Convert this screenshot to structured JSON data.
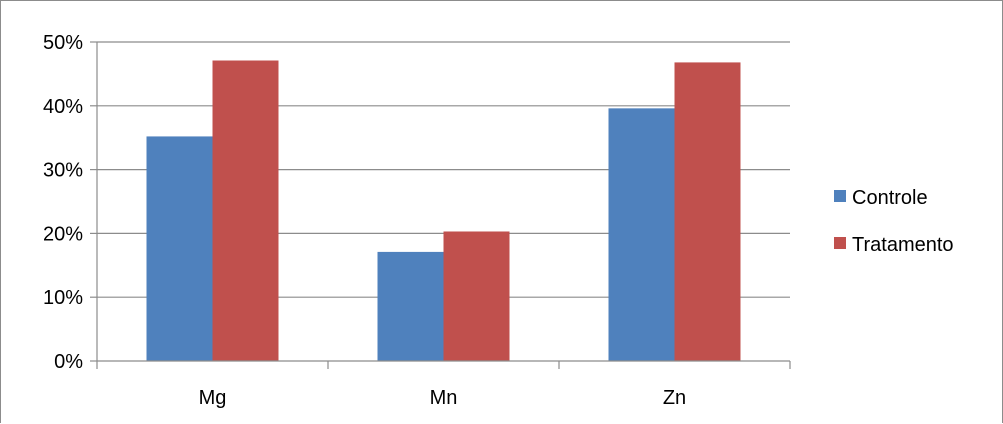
{
  "chart_data": {
    "type": "bar",
    "categories": [
      "Mg",
      "Mn",
      "Zn"
    ],
    "series": [
      {
        "name": "Controle",
        "values": [
          35.2,
          17.1,
          39.6
        ],
        "color": "#4F81BD"
      },
      {
        "name": "Tratamento",
        "values": [
          47.1,
          20.3,
          46.8
        ],
        "color": "#C0504D"
      }
    ],
    "title": "",
    "xlabel": "",
    "ylabel": "",
    "ylim": [
      0,
      50
    ],
    "yticks": [
      0,
      10,
      20,
      30,
      40,
      50
    ],
    "ytick_labels": [
      "0%",
      "10%",
      "20%",
      "30%",
      "40%",
      "50%"
    ],
    "grid": "horizontal",
    "legend_position": "right",
    "colors": {
      "grid": "#8C8C8C",
      "axis": "#8C8C8C",
      "border": "#8C8C8C"
    }
  }
}
